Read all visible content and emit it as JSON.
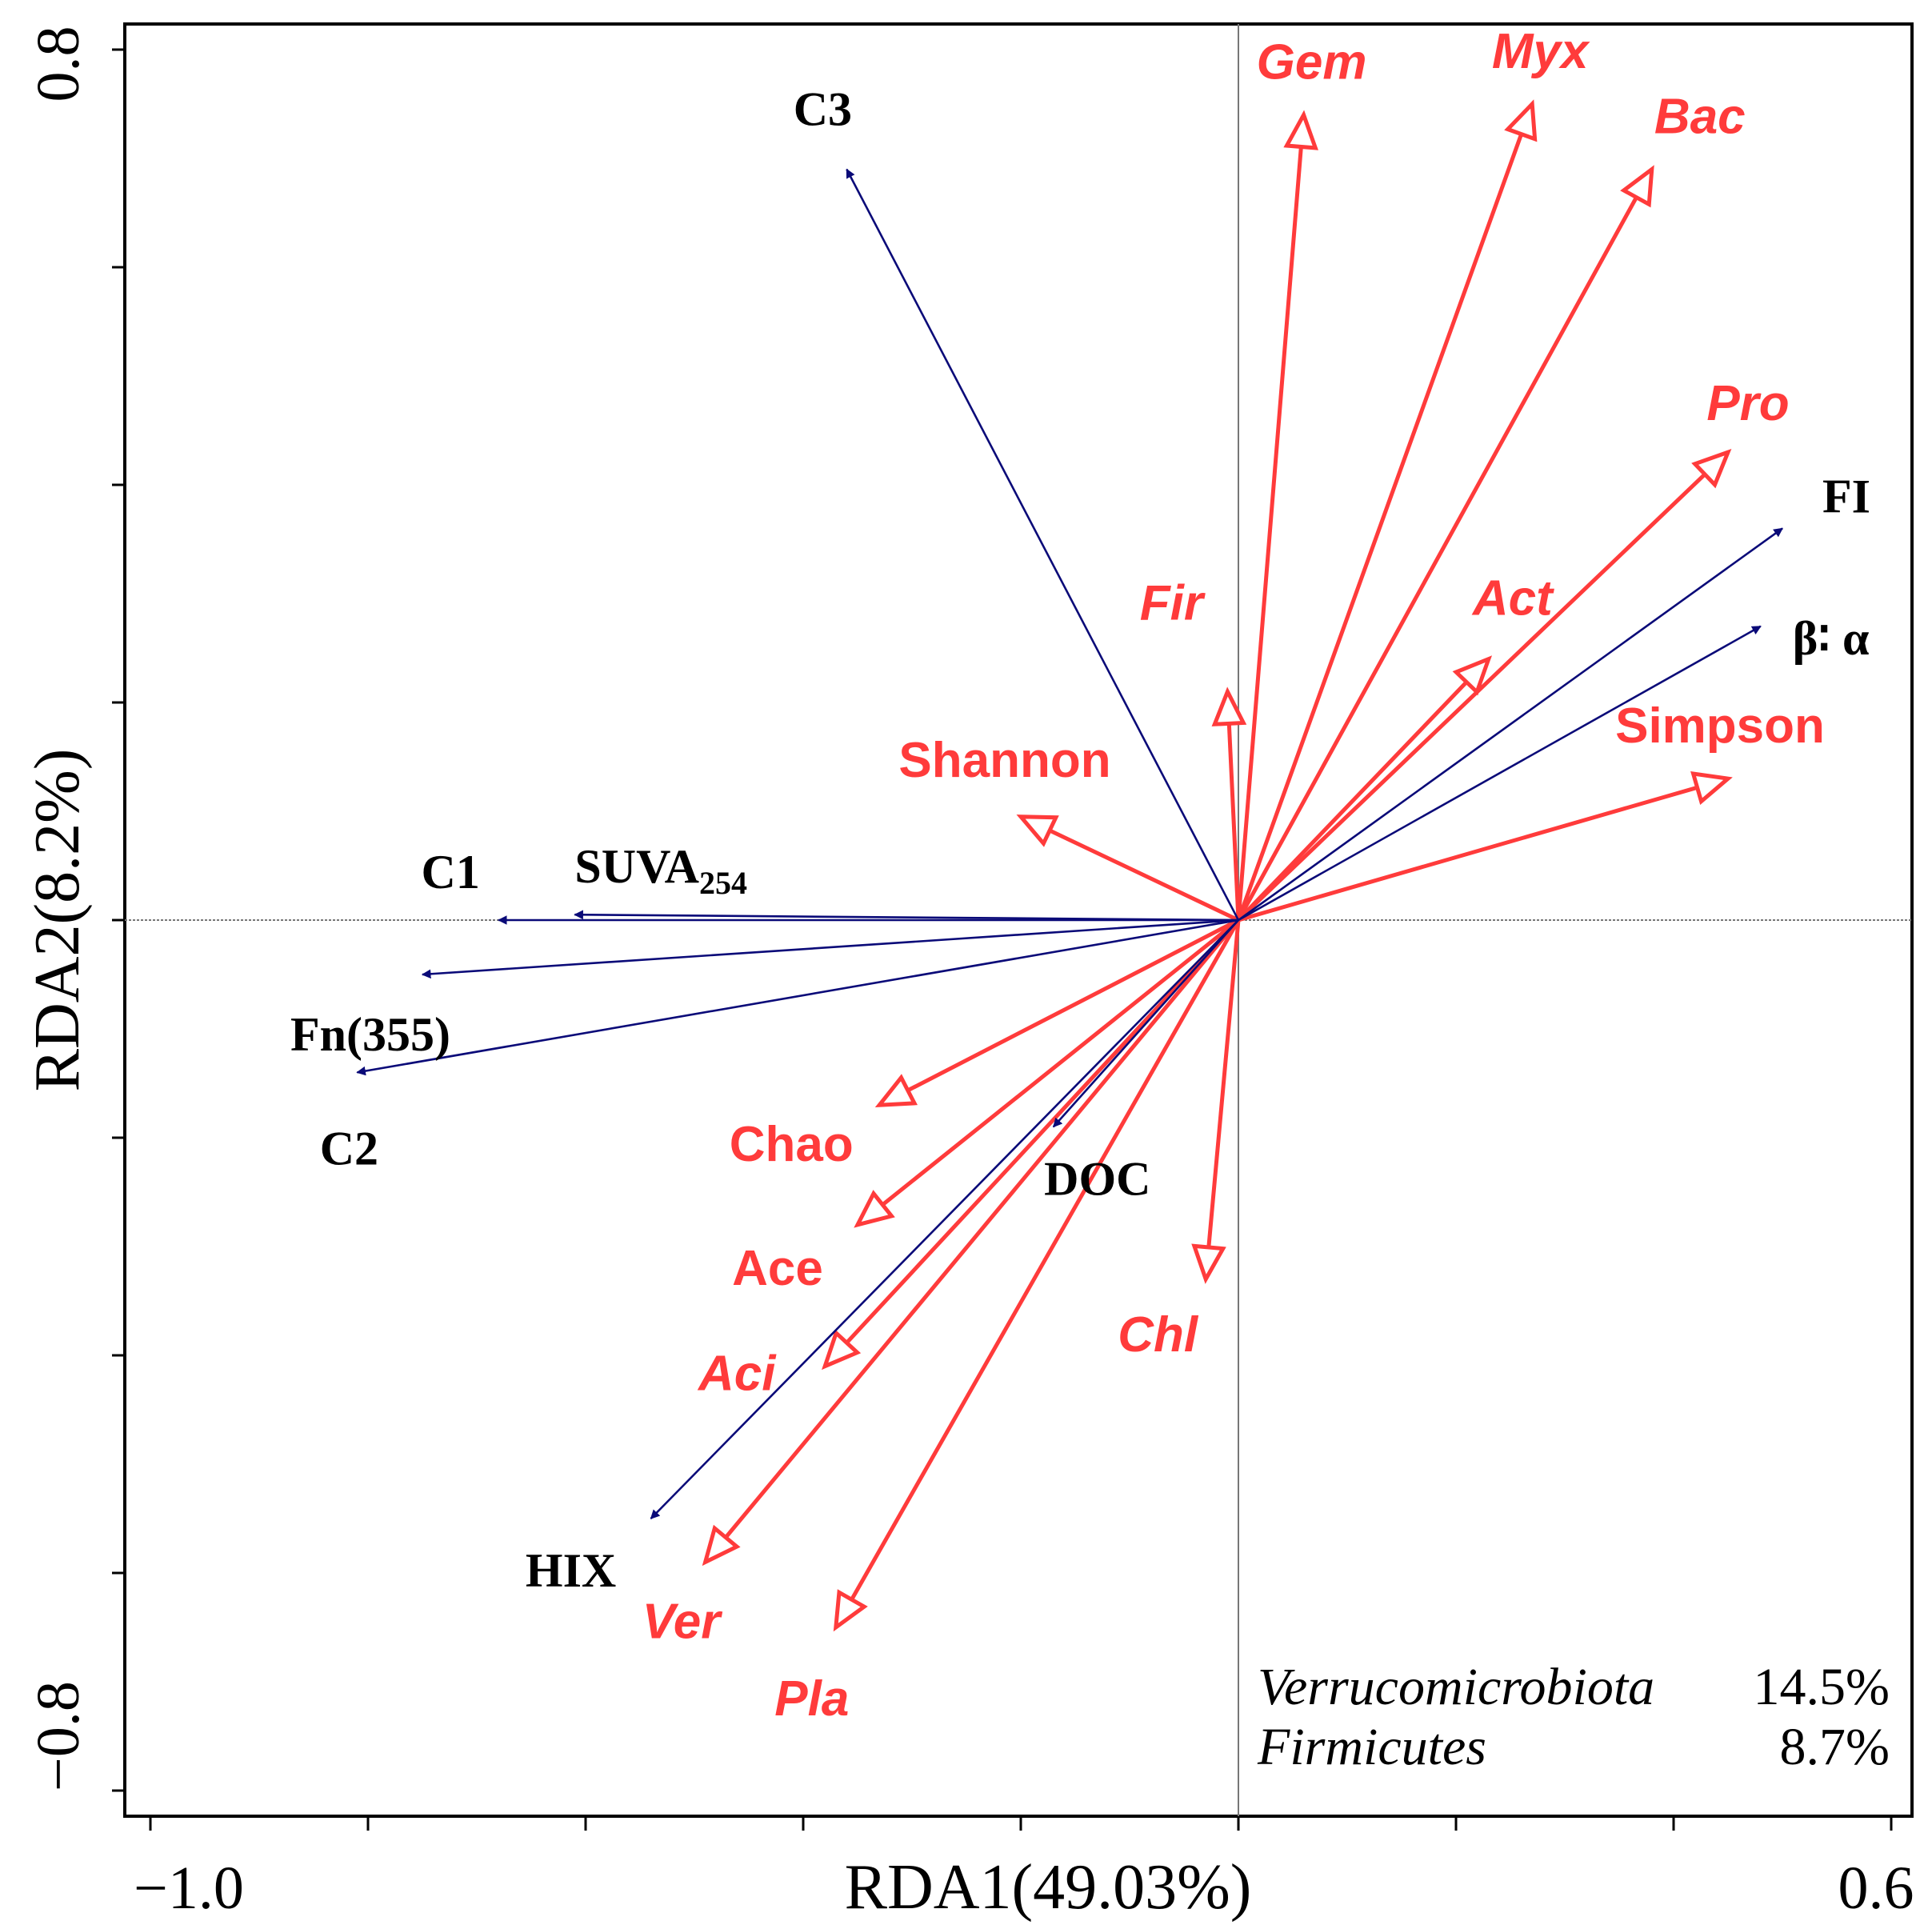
{
  "chart_data": {
    "type": "biplot",
    "xlabel": "RDA1(49.03%)",
    "ylabel": "RDA2(8.2%)",
    "xlim": [
      -1.0,
      0.6
    ],
    "ylim": [
      -0.8,
      0.8
    ],
    "x_tick_labels": [
      "−1.0",
      "0.6"
    ],
    "y_tick_labels": [
      "0.8",
      "−0.8"
    ],
    "colors": {
      "env": "#0a0a78",
      "species": "#ff3b3b"
    },
    "environmental_variables": [
      {
        "name": "C3",
        "x": -0.36,
        "y": 0.69
      },
      {
        "name": "SUVA",
        "subscript": "254",
        "x": -0.61,
        "y": 0.005
      },
      {
        "name": "C1",
        "x": -0.68,
        "y": 0.0
      },
      {
        "name": "Fn(355)",
        "x": -0.75,
        "y": -0.05
      },
      {
        "name": "C2",
        "x": -0.81,
        "y": -0.14
      },
      {
        "name": "DOC",
        "x": -0.17,
        "y": -0.19
      },
      {
        "name": "HIX",
        "x": -0.54,
        "y": -0.55
      },
      {
        "name": "FI",
        "x": 0.5,
        "y": 0.36
      },
      {
        "name": "β∶ α",
        "x": 0.48,
        "y": 0.27
      }
    ],
    "species": [
      {
        "name": "Gem",
        "x": 0.06,
        "y": 0.74,
        "italic": true
      },
      {
        "name": "Myx",
        "x": 0.27,
        "y": 0.75,
        "italic": true
      },
      {
        "name": "Bac",
        "x": 0.38,
        "y": 0.69,
        "italic": true
      },
      {
        "name": "Pro",
        "x": 0.45,
        "y": 0.43,
        "italic": true
      },
      {
        "name": "Act",
        "x": 0.23,
        "y": 0.24,
        "italic": true
      },
      {
        "name": "Fir",
        "x": -0.01,
        "y": 0.21,
        "italic": true
      },
      {
        "name": "Shannon",
        "x": -0.2,
        "y": 0.095,
        "italic": false
      },
      {
        "name": "Simpson",
        "x": 0.45,
        "y": 0.13,
        "italic": false
      },
      {
        "name": "Chao",
        "x": -0.33,
        "y": -0.17,
        "italic": false
      },
      {
        "name": "Ace",
        "x": -0.35,
        "y": -0.28,
        "italic": false
      },
      {
        "name": "Aci",
        "x": -0.38,
        "y": -0.41,
        "italic": true
      },
      {
        "name": "Ver",
        "x": -0.49,
        "y": -0.59,
        "italic": true
      },
      {
        "name": "Pla",
        "x": -0.37,
        "y": -0.65,
        "italic": true
      },
      {
        "name": "Chl",
        "x": -0.03,
        "y": -0.33,
        "italic": true
      }
    ],
    "legend": {
      "position": "bottom-right",
      "entries": [
        {
          "label": "Verrucomicrobiota",
          "value": "14.5%"
        },
        {
          "label": "Firmicutes",
          "value": "8.7%"
        }
      ]
    }
  }
}
